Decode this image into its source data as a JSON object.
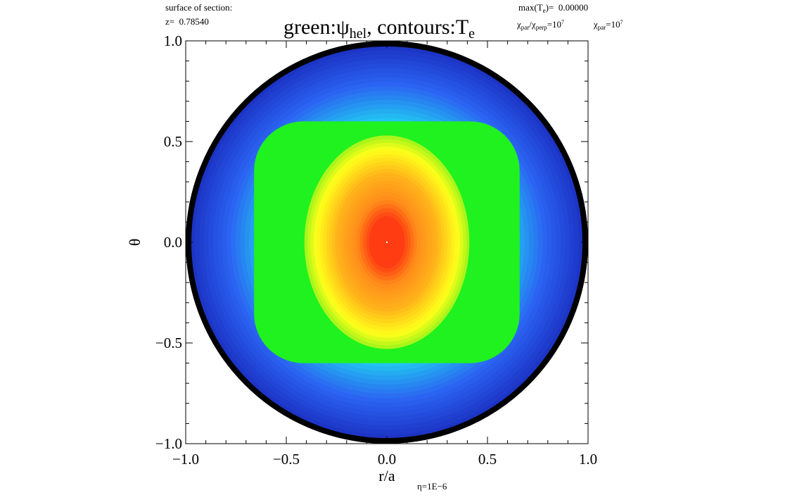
{
  "header": {
    "section_line1": "surface of section:",
    "section_line2_prefix": "z=",
    "section_line2_value": "0.78540",
    "max_prefix": "max(T",
    "max_sub": "e",
    "max_suffix": ")=",
    "max_value": "0.00000",
    "chi_ratio": {
      "chi1": "χ",
      "chi1_sub": "par",
      "slash": "/",
      "chi2": "χ",
      "chi2_sub": "perp",
      "eq": "=10",
      "exp": "7"
    },
    "chi_par": {
      "chi": "χ",
      "chi_sub": "par",
      "eq": "=10",
      "exp": "7"
    }
  },
  "title": {
    "part1": "green:ψ",
    "part1_sub": "hel",
    "part2": ", contours:T",
    "part2_sub": "e"
  },
  "footer": {
    "eta": "η=1E−6"
  },
  "chart_data": {
    "type": "heatmap",
    "xlabel": "r/a",
    "ylabel": "θ",
    "xlim": [
      -1.0,
      1.0
    ],
    "ylim": [
      -1.0,
      1.0
    ],
    "xticks": [
      "−1.0",
      "−0.5",
      "0.0",
      "0.5",
      "1.0"
    ],
    "yticks": [
      "1.0",
      "0.5",
      "0.0",
      "−0.5",
      "−1.0"
    ],
    "xtick_values": [
      -1.0,
      -0.5,
      0.0,
      0.5,
      1.0
    ],
    "ytick_values": [
      1.0,
      0.5,
      0.0,
      -0.5,
      -1.0
    ],
    "boundary_radius": 1.0,
    "green_region": {
      "x_range": [
        -0.66,
        0.66
      ],
      "y_range": [
        -0.6,
        0.6
      ]
    },
    "core": {
      "center": [
        0.0,
        0.0
      ],
      "half_width_x": 0.41,
      "half_height_y": 0.53
    },
    "colors": {
      "outer_dark": "#1a2fc0",
      "outer_blue": "#2b63f2",
      "cyan": "#1ee8f0",
      "green": "#1ff21f",
      "yellow": "#ffff1a",
      "orange": "#ff8c1a",
      "red": "#ff2a10",
      "boundary": "#000000"
    }
  }
}
